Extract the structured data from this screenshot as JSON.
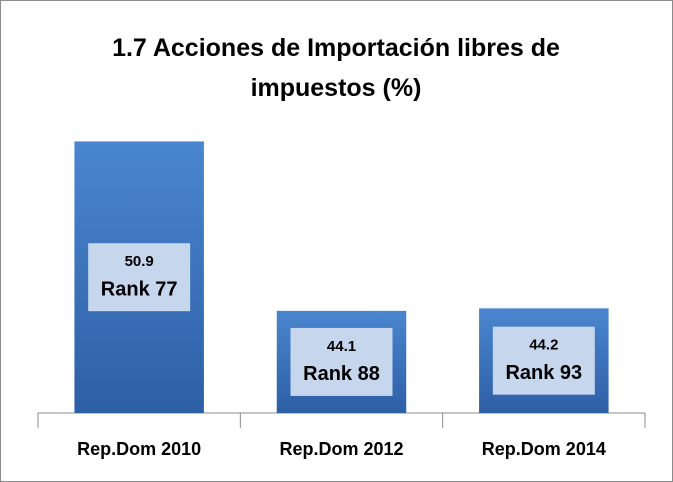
{
  "chart_data": {
    "type": "bar",
    "title": "1.7 Acciones de Importación libres de impuestos (%)",
    "categories": [
      "Rep.Dom 2010",
      "Rep.Dom 2012",
      "Rep.Dom 2014"
    ],
    "values": [
      50.9,
      44.1,
      44.2
    ],
    "annotations": [
      "Rank 77",
      "Rank 88",
      "Rank 93"
    ],
    "color": "#3a6db5",
    "ylim": [
      40,
      52
    ]
  }
}
